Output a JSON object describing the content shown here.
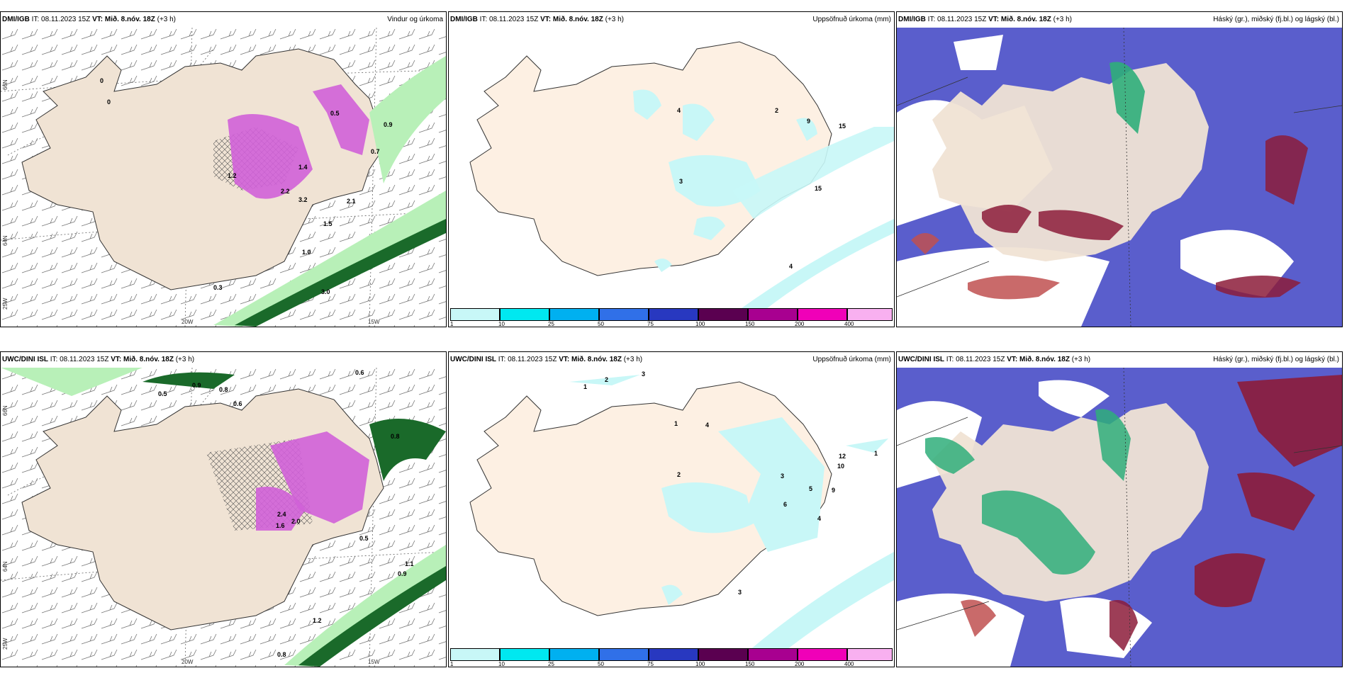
{
  "common": {
    "it": "IT: 08.11.2023 15Z",
    "vt_label": "VT:",
    "vt_value": "Mið. 8.nóv. 18Z",
    "lead": "(+3 h)"
  },
  "panels": {
    "r1c1": {
      "model": "DMI/IGB",
      "title": "Vindur og úrkoma"
    },
    "r1c2": {
      "model": "DMI/IGB",
      "title": "Uppsöfnuð úrkoma (mm)"
    },
    "r1c3": {
      "model": "DMI/IGB",
      "title": "Háský (gr.), miðský (fj.bl.) og lágský (bl.)"
    },
    "r2c1": {
      "model": "UWC/DINI ISL",
      "title": ""
    },
    "r2c2": {
      "model": "UWC/DINI ISL",
      "title": "Uppsöfnuð úrkoma (mm)"
    },
    "r2c3": {
      "model": "UWC/DINI ISL",
      "title": "Háský (gr.), miðský (fj.bl.) og lágský (bl.)"
    }
  },
  "axis": {
    "lon_20w": "20W",
    "lon_15w": "15W",
    "lat_66n": "66N",
    "lat_64n": "64N",
    "lon_25w": "25W"
  },
  "colorbar": {
    "labels": [
      "1",
      "10",
      "25",
      "50",
      "75",
      "100",
      "150",
      "200",
      "400"
    ],
    "colors": [
      "#c8f7f7",
      "#00e8f0",
      "#00b0f0",
      "#3070e8",
      "#2838c0",
      "#5a0050",
      "#a80090",
      "#f000b8",
      "#f8b0f0"
    ]
  },
  "values": {
    "r1c1": [
      "0",
      "0",
      "0.5",
      "1.4",
      "0.7",
      "1.2",
      "2.2",
      "3.2",
      "2.1",
      "1.5",
      "1.0",
      "0.3",
      "0.9",
      "3.0"
    ],
    "r1c2": [
      "4",
      "2",
      "9",
      "15",
      "3",
      "15",
      "4"
    ],
    "r2c1": [
      "0.6",
      "0.9",
      "0.8",
      "0.5",
      "0.6",
      "0.8",
      "2.4",
      "2.0",
      "1.6",
      "0.5",
      "1.1",
      "0.9",
      "1.2",
      "0.8"
    ],
    "r2c2": [
      "1",
      "2",
      "3",
      "1",
      "4",
      "2",
      "3",
      "12",
      "10",
      "9",
      "5",
      "6",
      "4",
      "3",
      "1"
    ]
  },
  "colors": {
    "land": "#f0e3d4",
    "cloud_low": "#5a5ecc",
    "cloud_mid": "#2fae7a",
    "cloud_high": "#8c1c3a",
    "precip_light": "#b8f0b8",
    "precip_dark": "#1a6a2a",
    "precip_heavy": "#d060d8"
  }
}
